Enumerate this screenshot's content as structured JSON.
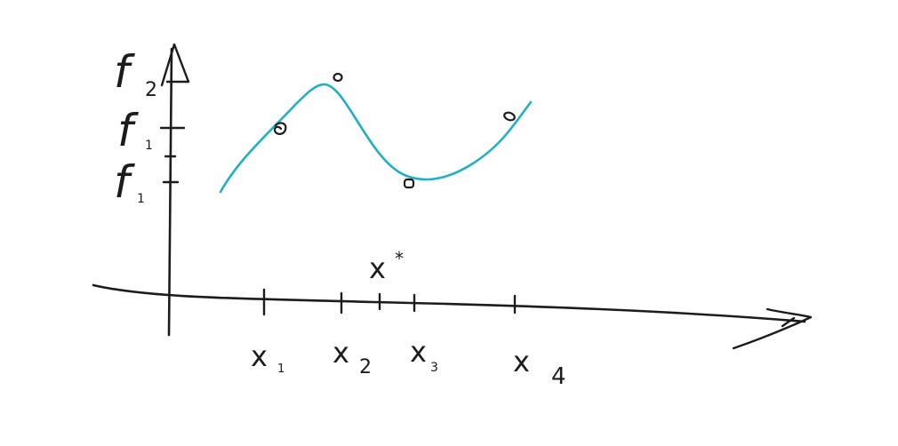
{
  "colors": {
    "ink": "#1c1c1c",
    "curve": "#1fb0c4",
    "background": "#ffffff"
  },
  "x_axis": {
    "tick_labels": [
      {
        "main": "x",
        "sub": "1"
      },
      {
        "main": "x",
        "sub": "2"
      },
      {
        "main": "x",
        "sub": "3"
      },
      {
        "main": "x",
        "sub": "4"
      }
    ],
    "marker": {
      "main": "x",
      "sup": "*"
    }
  },
  "y_axis": {
    "tick_labels": [
      {
        "main": "f",
        "sub": "2"
      },
      {
        "main": "f",
        "sub": "1"
      },
      {
        "main": "f",
        "sub": "1"
      }
    ]
  }
}
